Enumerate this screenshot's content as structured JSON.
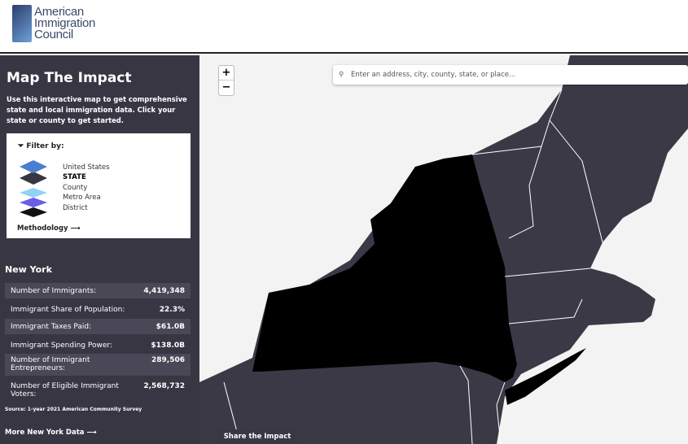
{
  "header": {
    "logo_text": [
      "American",
      "Immigration",
      "Council"
    ]
  },
  "sidebar": {
    "title": "Map The Impact",
    "intro": "Use this interactive map to get comprehensive state and local immigration data. Click your state or county to get started.",
    "filter": {
      "heading": "Filter by:",
      "layers": [
        {
          "label": "United States",
          "color": "#4a7fd0"
        },
        {
          "label": "STATE",
          "color": "#393644",
          "selected": true
        },
        {
          "label": "County",
          "color": "#8fd3f5"
        },
        {
          "label": "Metro Area",
          "color": "#6a5de8"
        },
        {
          "label": "District",
          "color": "#111111"
        }
      ],
      "methodology": "Methodology ⟶"
    },
    "state_name": "New York",
    "stats": [
      {
        "label": "Number of Immigrants:",
        "value": "4,419,348"
      },
      {
        "label": "Immigrant Share of Population:",
        "value": "22.3%"
      },
      {
        "label": "Immigrant Taxes Paid:",
        "value": "$61.0B"
      },
      {
        "label": "Immigrant Spending Power:",
        "value": "$138.0B"
      },
      {
        "label": "Number of Immigrant Entrepreneurs:",
        "value": "289,506"
      },
      {
        "label": "Number of Eligible Immigrant Voters:",
        "value": "2,568,732"
      }
    ],
    "source": "Source: 1-year 2021 American Community Survey",
    "more": "More New York Data ⟶"
  },
  "map": {
    "zoom_in": "+",
    "zoom_out": "−",
    "search_placeholder": "Enter an address, city, county, state, or place...",
    "share": "Share the Impact",
    "selected_state": "New York",
    "colors": {
      "land": "#3c3946",
      "selected": "#000000",
      "water": "#f3f3f3"
    }
  }
}
